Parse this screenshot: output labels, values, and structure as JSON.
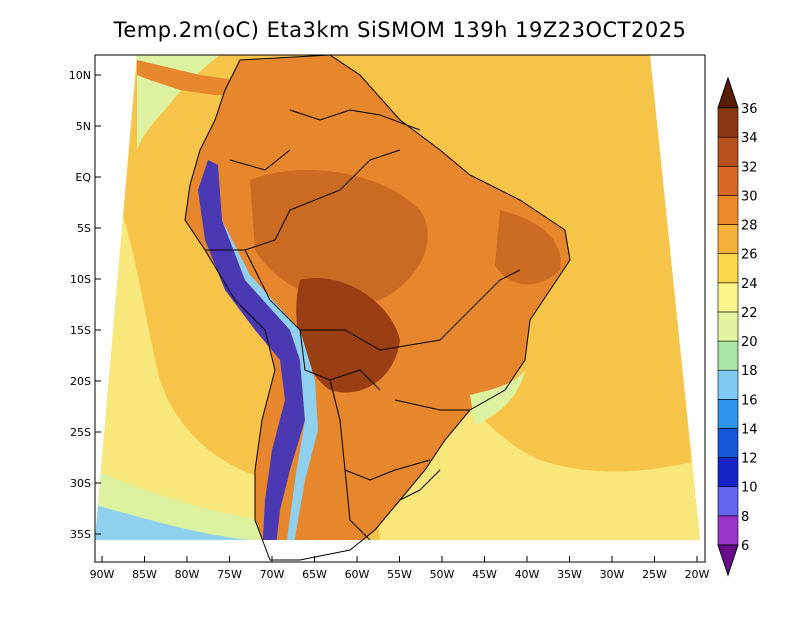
{
  "title": "Temp.2m(oC) Eta3km SiSMOM 139h 19Z23OCT2025",
  "lat_labels": [
    "10N",
    "5N",
    "EQ",
    "5S",
    "10S",
    "15S",
    "20S",
    "25S",
    "30S",
    "35S"
  ],
  "lon_labels": [
    "90W",
    "85W",
    "80W",
    "75W",
    "70W",
    "65W",
    "60W",
    "55W",
    "50W",
    "45W",
    "40W",
    "35W",
    "30W",
    "25W",
    "20W"
  ],
  "colorbar": {
    "labels": [
      "6",
      "8",
      "10",
      "12",
      "14",
      "16",
      "18",
      "20",
      "22",
      "24",
      "26",
      "28",
      "30",
      "32",
      "34",
      "36"
    ],
    "colors": [
      "#6a0a8a",
      "#9a35c8",
      "#6565ee",
      "#1525c5",
      "#1458d8",
      "#2e95ec",
      "#7fcaf5",
      "#a9e8a4",
      "#e2f5a0",
      "#fbf58c",
      "#f9d94a",
      "#f7b23a",
      "#ef8a2c",
      "#da6824",
      "#b6511d",
      "#8d3612",
      "#5a1e08"
    ]
  },
  "palette": {
    "ocean_warm": "#f6c448",
    "ocean_mild": "#f8e77a",
    "ocean_cool": "#dcf2a0",
    "ocean_cold": "#8fd0ef",
    "land_hot": "#ca6b24",
    "land_very_hot": "#9a3e14",
    "land_warm": "#e6862d",
    "andes": "#4b39b4",
    "border": "#000000"
  }
}
